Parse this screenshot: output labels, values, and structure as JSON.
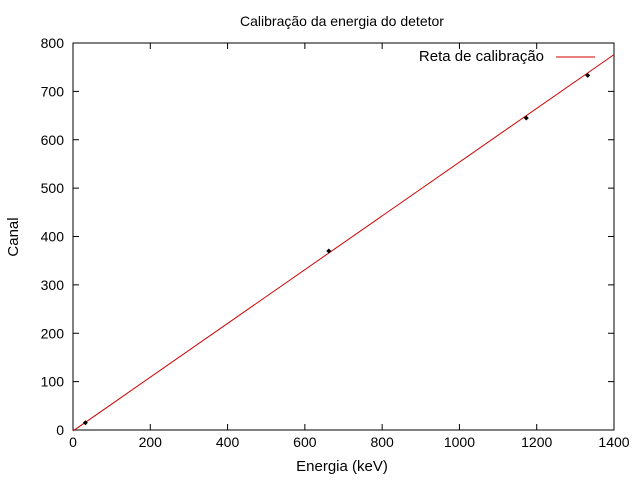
{
  "chart_data": {
    "type": "scatter",
    "title": "Calibração da energia do detetor",
    "xlabel": "Energia (keV)",
    "ylabel": "Canal",
    "xlim": [
      0,
      1400
    ],
    "ylim": [
      0,
      800
    ],
    "xticks": [
      0,
      200,
      400,
      600,
      800,
      1000,
      1200,
      1400
    ],
    "yticks": [
      0,
      100,
      200,
      300,
      400,
      500,
      600,
      700,
      800
    ],
    "grid": false,
    "legend_position": "top-right",
    "series": [
      {
        "kind": "points",
        "color": "#000000",
        "x": [
          32,
          662,
          1173,
          1332
        ],
        "y": [
          15,
          370,
          645,
          733
        ]
      },
      {
        "kind": "line",
        "name": "Reta de calibração",
        "color": "#d00000",
        "x": [
          0,
          1400
        ],
        "y": [
          -2,
          776
        ]
      }
    ]
  }
}
